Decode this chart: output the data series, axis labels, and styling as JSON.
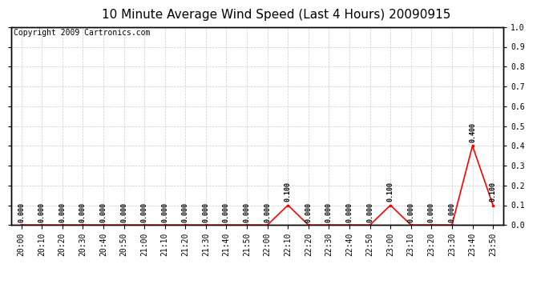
{
  "title": "10 Minute Average Wind Speed (Last 4 Hours) 20090915",
  "copyright": "Copyright 2009 Cartronics.com",
  "x_labels": [
    "20:00",
    "20:10",
    "20:20",
    "20:30",
    "20:40",
    "20:50",
    "21:00",
    "21:10",
    "21:20",
    "21:30",
    "21:40",
    "21:50",
    "22:00",
    "22:10",
    "22:20",
    "22:30",
    "22:40",
    "22:50",
    "23:00",
    "23:10",
    "23:20",
    "23:30",
    "23:40",
    "23:50"
  ],
  "y_values": [
    0.0,
    0.0,
    0.0,
    0.0,
    0.0,
    0.0,
    0.0,
    0.0,
    0.0,
    0.0,
    0.0,
    0.0,
    0.0,
    0.1,
    0.0,
    0.0,
    0.0,
    0.0,
    0.1,
    0.0,
    0.0,
    0.0,
    0.4,
    0.1
  ],
  "ylim": [
    0.0,
    1.0
  ],
  "yticks": [
    0.0,
    0.1,
    0.2,
    0.3,
    0.4,
    0.5,
    0.6,
    0.7,
    0.8,
    0.9,
    1.0
  ],
  "right_ytick_labels": [
    "0.0",
    "0.1",
    "0.2",
    "0.2",
    "0.3",
    "0.4",
    "0.5",
    "0.6",
    "0.7",
    "0.8",
    "0.8",
    "0.9",
    "1.0"
  ],
  "line_color": "#ff0000",
  "marker": "s",
  "marker_size": 2,
  "bg_color": "#ffffff",
  "grid_color": "#cccccc",
  "title_fontsize": 11,
  "annotation_fontsize": 6,
  "tick_fontsize": 7,
  "copyright_fontsize": 7
}
